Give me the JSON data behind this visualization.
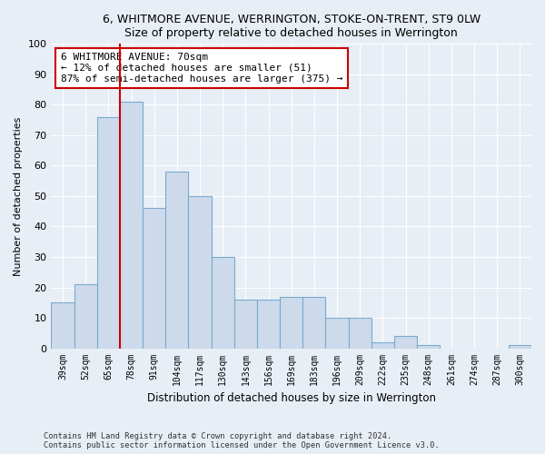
{
  "title1": "6, WHITMORE AVENUE, WERRINGTON, STOKE-ON-TRENT, ST9 0LW",
  "title2": "Size of property relative to detached houses in Werrington",
  "xlabel": "Distribution of detached houses by size in Werrington",
  "ylabel": "Number of detached properties",
  "categories": [
    "39sqm",
    "52sqm",
    "65sqm",
    "78sqm",
    "91sqm",
    "104sqm",
    "117sqm",
    "130sqm",
    "143sqm",
    "156sqm",
    "169sqm",
    "183sqm",
    "196sqm",
    "209sqm",
    "222sqm",
    "235sqm",
    "248sqm",
    "261sqm",
    "274sqm",
    "287sqm",
    "300sqm"
  ],
  "values": [
    15,
    21,
    76,
    81,
    46,
    58,
    50,
    30,
    16,
    16,
    17,
    17,
    10,
    10,
    2,
    4,
    1,
    0,
    0,
    0,
    1
  ],
  "bar_color": "#ccdaeb",
  "bar_edge_color": "#7aaacf",
  "vline_color": "#cc0000",
  "vline_pos": 2.5,
  "annotation_text": "6 WHITMORE AVENUE: 70sqm\n← 12% of detached houses are smaller (51)\n87% of semi-detached houses are larger (375) →",
  "annotation_box_facecolor": "#ffffff",
  "annotation_box_edgecolor": "#cc0000",
  "ylim": [
    0,
    100
  ],
  "yticks": [
    0,
    10,
    20,
    30,
    40,
    50,
    60,
    70,
    80,
    90,
    100
  ],
  "footer1": "Contains HM Land Registry data © Crown copyright and database right 2024.",
  "footer2": "Contains public sector information licensed under the Open Government Licence v3.0.",
  "bg_color": "#e8eef5",
  "plot_bg_color": "#e8eef5",
  "grid_color": "#ffffff",
  "title1_fontsize": 9,
  "title2_fontsize": 9
}
